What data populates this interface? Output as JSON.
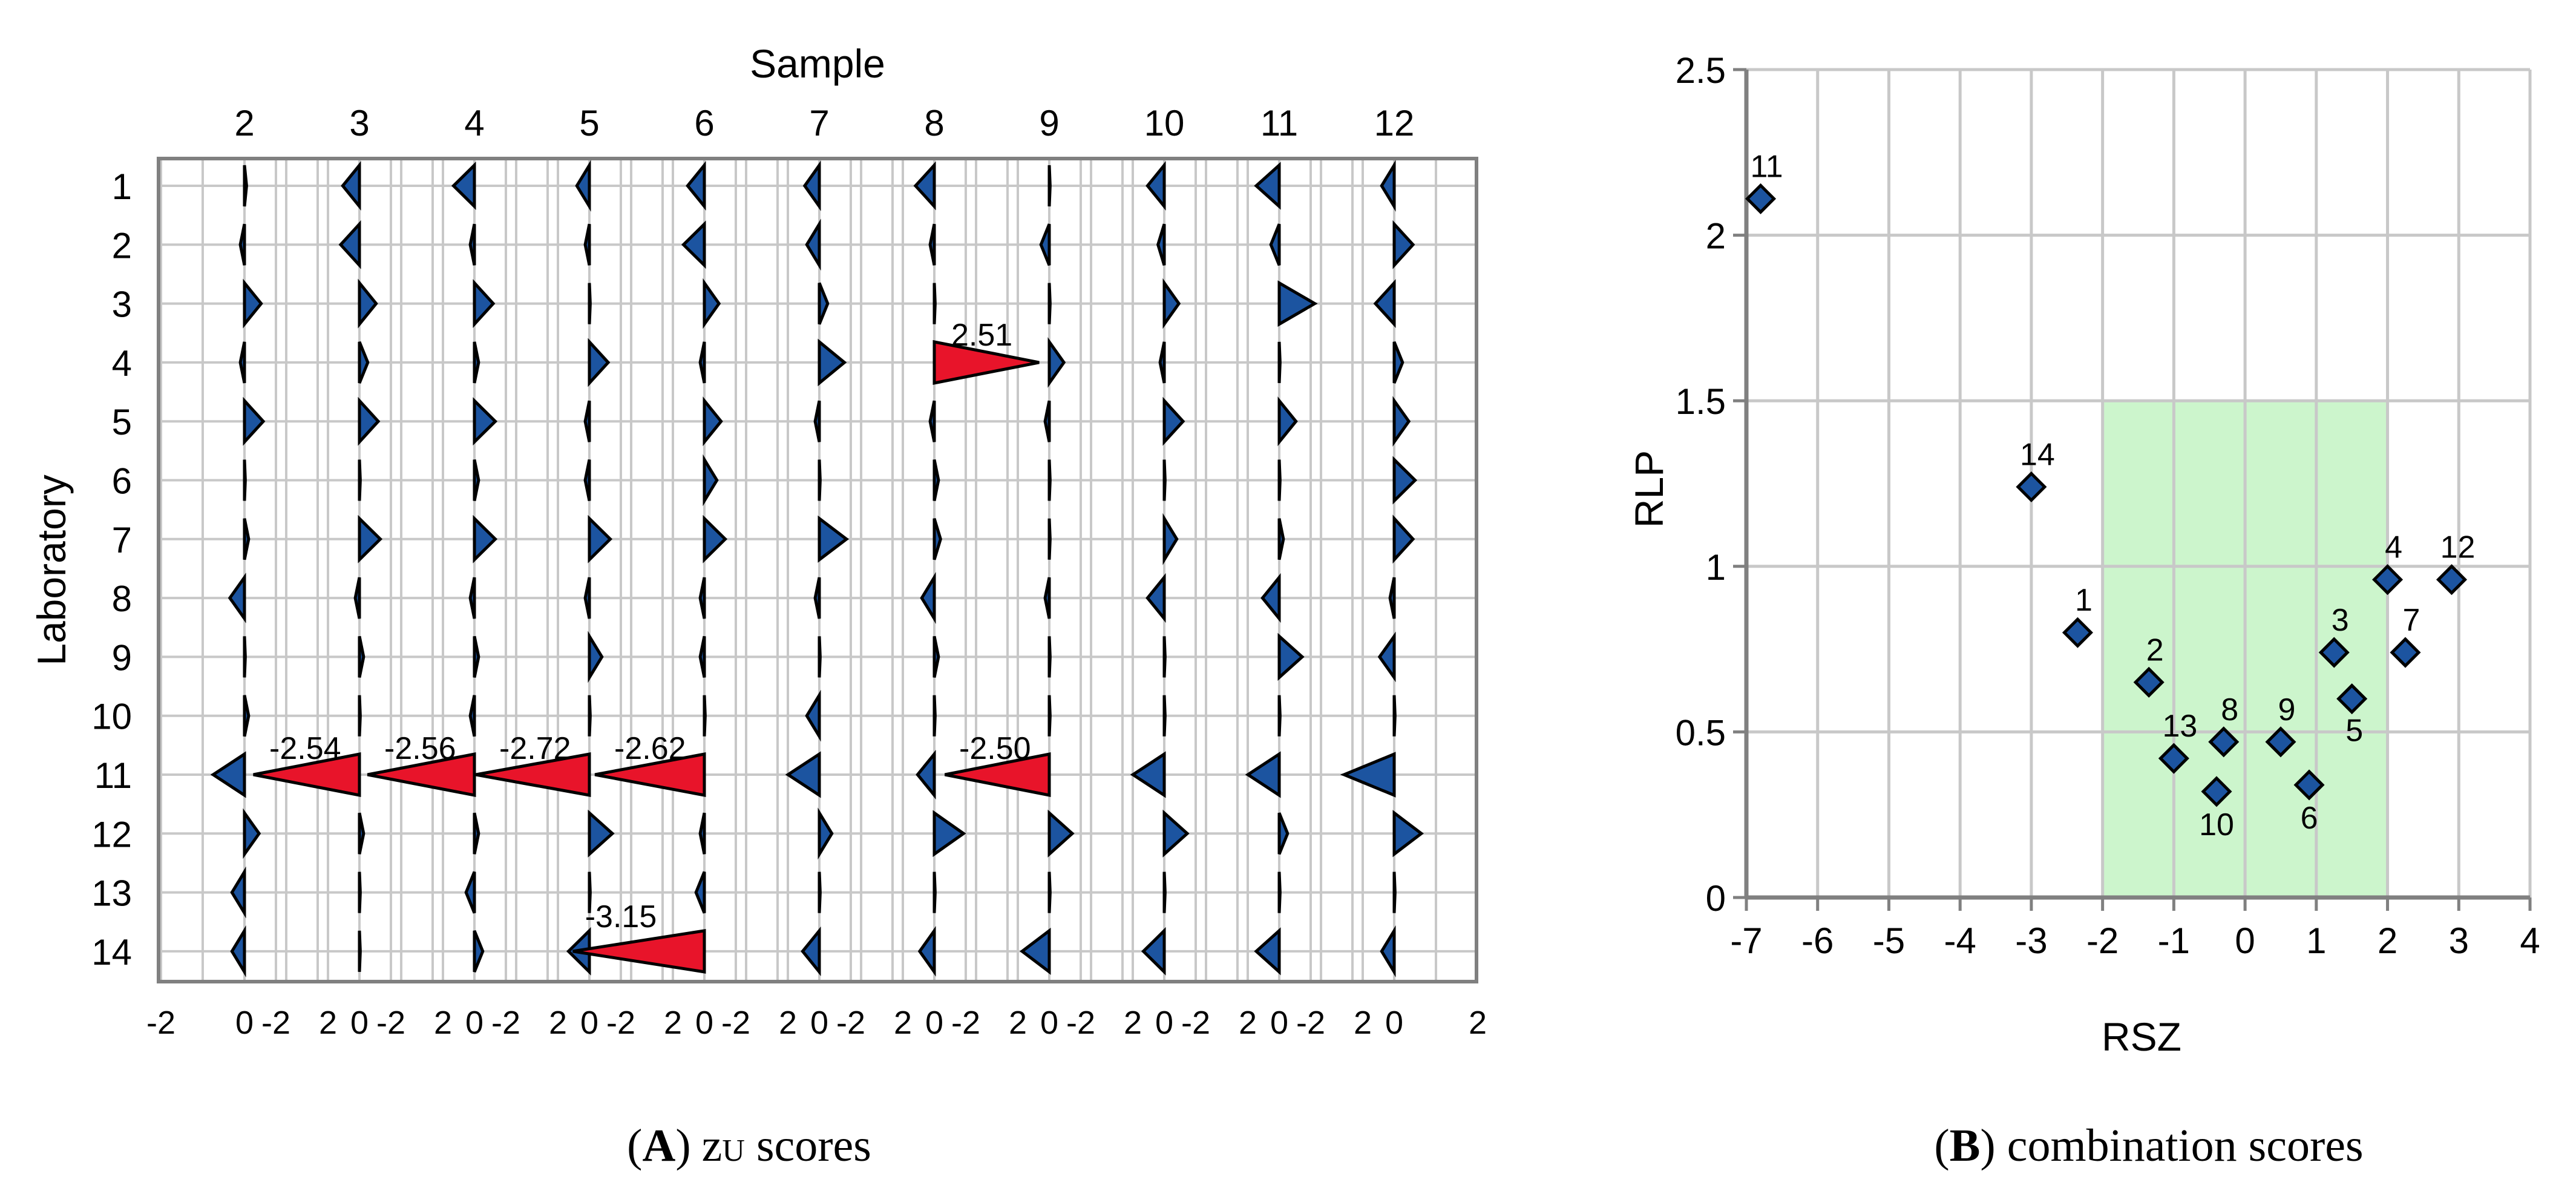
{
  "caption_a": {
    "open": "(",
    "letter": "A",
    "close": ")",
    "z": "z",
    "sub": "U",
    "scores": " scores"
  },
  "caption_b": {
    "open": "(",
    "letter": "B",
    "close": ")",
    "rest": " combination scores"
  },
  "colors": {
    "triangle_normal": "#1c54a0",
    "triangle_flagged": "#e8142a",
    "acceptance_region": "#ccf5cc",
    "grid": "#c8c8c8",
    "frame": "#808080"
  },
  "chart_data": [
    {
      "type": "scatter",
      "subtype": "triangle-marker grid (z-score direction and size)",
      "title": "",
      "top_axis_label": "Sample",
      "ylabel": "Laboratory",
      "samples": [
        2,
        3,
        4,
        5,
        6,
        7,
        8,
        9,
        10,
        11,
        12
      ],
      "laboratories": [
        1,
        2,
        3,
        4,
        5,
        6,
        7,
        8,
        9,
        10,
        11,
        12,
        13,
        14
      ],
      "x_tick_labels": [
        "-2",
        "0",
        "2"
      ],
      "x_tick_label_prefix": "-2",
      "x_range_per_sample": [
        -2,
        2
      ],
      "flag_threshold": 2.5,
      "z_scores": [
        [
          0.05,
          -0.4,
          -0.5,
          -0.3,
          -0.4,
          -0.35,
          -0.45,
          0.02,
          -0.4,
          -0.55,
          -0.3
        ],
        [
          -0.1,
          -0.45,
          -0.1,
          -0.1,
          -0.5,
          -0.3,
          -0.1,
          -0.2,
          -0.15,
          -0.2,
          0.45
        ],
        [
          0.4,
          0.4,
          0.45,
          0.02,
          0.35,
          0.2,
          0.02,
          0.02,
          0.35,
          0.85,
          -0.45
        ],
        [
          -0.1,
          0.2,
          0.1,
          0.45,
          -0.1,
          0.6,
          2.51,
          0.35,
          -0.1,
          0.02,
          0.2
        ],
        [
          0.45,
          0.45,
          0.5,
          -0.1,
          0.4,
          -0.1,
          -0.1,
          -0.1,
          0.45,
          0.4,
          0.35
        ],
        [
          0.02,
          0.02,
          0.1,
          -0.1,
          0.3,
          0.02,
          0.1,
          0.02,
          0.02,
          0.02,
          0.5
        ],
        [
          0.1,
          0.5,
          0.5,
          0.5,
          0.5,
          0.65,
          0.15,
          0.02,
          0.3,
          0.1,
          0.45
        ],
        [
          -0.35,
          -0.1,
          -0.1,
          -0.1,
          -0.1,
          -0.1,
          -0.3,
          -0.1,
          -0.4,
          -0.4,
          -0.1
        ],
        [
          0.02,
          0.1,
          0.1,
          0.3,
          -0.1,
          0.02,
          0.1,
          0.02,
          0.02,
          0.55,
          -0.35
        ],
        [
          0.1,
          0.02,
          -0.1,
          0.02,
          0.02,
          -0.3,
          0.02,
          0.02,
          0.02,
          0.02,
          0.02
        ],
        [
          -0.75,
          -2.54,
          -2.56,
          -2.72,
          -2.62,
          -0.75,
          -0.4,
          -2.5,
          -0.75,
          -0.75,
          -1.2
        ],
        [
          0.35,
          0.1,
          0.1,
          0.55,
          -0.1,
          0.3,
          0.7,
          0.55,
          0.55,
          0.2,
          0.65
        ],
        [
          -0.3,
          0.02,
          -0.2,
          0.02,
          -0.2,
          0.02,
          0.02,
          0.02,
          0.02,
          0.02,
          0.02
        ],
        [
          -0.3,
          0.02,
          0.2,
          -0.5,
          -3.15,
          -0.4,
          -0.35,
          -0.65,
          -0.5,
          -0.55,
          -0.3
        ]
      ],
      "annotations": [
        {
          "lab": 4,
          "sample": 8,
          "text": "2.51"
        },
        {
          "lab": 11,
          "sample": 3,
          "text": "-2.54"
        },
        {
          "lab": 11,
          "sample": 4,
          "text": "-2.56"
        },
        {
          "lab": 11,
          "sample": 5,
          "text": "-2.72"
        },
        {
          "lab": 11,
          "sample": 6,
          "text": "-2.62"
        },
        {
          "lab": 11,
          "sample": 9,
          "text": "-2.50"
        },
        {
          "lab": 14,
          "sample": 6,
          "text": "-3.15"
        }
      ],
      "grid": true
    },
    {
      "type": "scatter",
      "title": "",
      "xlabel": "RSZ",
      "ylabel": "RLP",
      "xlim": [
        -7,
        4
      ],
      "ylim": [
        0,
        2.5
      ],
      "x_ticks": [
        -7,
        -6,
        -5,
        -4,
        -3,
        -2,
        -1,
        0,
        1,
        2,
        3,
        4
      ],
      "y_ticks": [
        0,
        0.5,
        1,
        1.5,
        2,
        2.5
      ],
      "y_tick_labels": [
        "0",
        "0.5",
        "1",
        "1.5",
        "2",
        "2.5"
      ],
      "acceptance_region": {
        "x": [
          -2,
          2
        ],
        "y": [
          0,
          1.5
        ]
      },
      "grid": true,
      "points": [
        {
          "label": "1",
          "x": -2.35,
          "y": 0.8
        },
        {
          "label": "2",
          "x": -1.35,
          "y": 0.65
        },
        {
          "label": "3",
          "x": 1.25,
          "y": 0.74
        },
        {
          "label": "4",
          "x": 2.0,
          "y": 0.96
        },
        {
          "label": "5",
          "x": 1.5,
          "y": 0.6
        },
        {
          "label": "6",
          "x": 0.9,
          "y": 0.34
        },
        {
          "label": "7",
          "x": 2.25,
          "y": 0.74
        },
        {
          "label": "8",
          "x": -0.3,
          "y": 0.47
        },
        {
          "label": "9",
          "x": 0.5,
          "y": 0.47
        },
        {
          "label": "10",
          "x": -0.4,
          "y": 0.32
        },
        {
          "label": "11",
          "x": -6.8,
          "y": 2.11
        },
        {
          "label": "12",
          "x": 2.9,
          "y": 0.96
        },
        {
          "label": "13",
          "x": -1.0,
          "y": 0.42
        },
        {
          "label": "14",
          "x": -3.0,
          "y": 1.24
        }
      ]
    }
  ]
}
